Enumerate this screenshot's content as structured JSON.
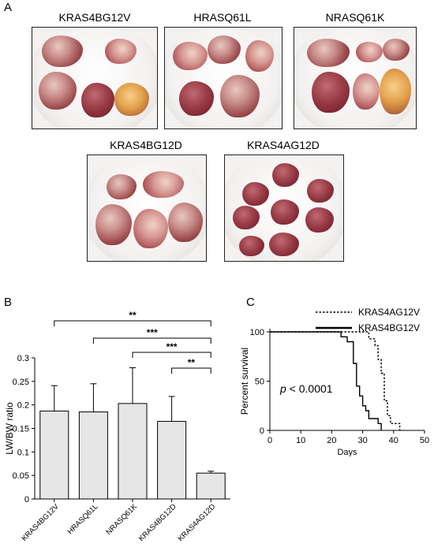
{
  "panel_a": {
    "letter": "A",
    "photos": [
      {
        "title": "KRAS4BG12V"
      },
      {
        "title": "HRASQ61L"
      },
      {
        "title": "NRASQ61K"
      },
      {
        "title": "KRAS4BG12D"
      },
      {
        "title": "KRAS4AG12D"
      }
    ]
  },
  "panel_b": {
    "letter": "B"
  },
  "panel_c": {
    "letter": "C"
  },
  "chart_data": [
    {
      "type": "bar",
      "categories": [
        "KRAS4BG12V",
        "HRASQ61L",
        "NRASQ61K",
        "KRAS4BG12D",
        "KRAS4AG12D"
      ],
      "values": [
        0.187,
        0.185,
        0.203,
        0.165,
        0.055
      ],
      "errors": [
        0.054,
        0.06,
        0.076,
        0.053,
        0.004
      ],
      "ylabel": "LW/BW ratio",
      "xlabel": "",
      "ylim": [
        0,
        0.3
      ],
      "yticks": [
        "0",
        "0.05",
        "0.1",
        "0.15",
        "0.2",
        "0.25",
        "0.3"
      ],
      "bar_color": "#e6e6e6",
      "significance": [
        {
          "from": "KRAS4BG12V",
          "to": "KRAS4AG12D",
          "label": "**"
        },
        {
          "from": "HRASQ61L",
          "to": "KRAS4AG12D",
          "label": "***"
        },
        {
          "from": "NRASQ61K",
          "to": "KRAS4AG12D",
          "label": "***"
        },
        {
          "from": "KRAS4BG12D",
          "to": "KRAS4AG12D",
          "label": "**"
        }
      ]
    },
    {
      "type": "line",
      "xlabel": "Days",
      "ylabel": "Percent survival",
      "xlim": [
        0,
        50
      ],
      "ylim": [
        0,
        100
      ],
      "xticks": [
        "0",
        "10",
        "20",
        "30",
        "40",
        "50"
      ],
      "yticks": [
        "0",
        "50",
        "100"
      ],
      "annotation_p": "p",
      "annotation_rest": " < 0.0001",
      "legend_position": "top-right",
      "series": [
        {
          "name": "KRAS4AG12V",
          "style": "dotted",
          "points": [
            [
              0,
              100
            ],
            [
              32,
              100
            ],
            [
              32,
              93
            ],
            [
              34,
              93
            ],
            [
              34,
              86
            ],
            [
              35,
              86
            ],
            [
              35,
              72
            ],
            [
              36,
              72
            ],
            [
              36,
              58
            ],
            [
              37,
              58
            ],
            [
              37,
              30
            ],
            [
              38,
              30
            ],
            [
              38,
              15
            ],
            [
              39,
              15
            ],
            [
              39,
              7
            ],
            [
              42,
              7
            ],
            [
              42,
              0
            ]
          ]
        },
        {
          "name": "KRAS4BG12V",
          "style": "solid",
          "points": [
            [
              0,
              100
            ],
            [
              23,
              100
            ],
            [
              23,
              95
            ],
            [
              25,
              95
            ],
            [
              25,
              90
            ],
            [
              27,
              90
            ],
            [
              27,
              68
            ],
            [
              28,
              68
            ],
            [
              28,
              45
            ],
            [
              29,
              45
            ],
            [
              29,
              35
            ],
            [
              30,
              35
            ],
            [
              30,
              25
            ],
            [
              31,
              25
            ],
            [
              31,
              20
            ],
            [
              32,
              20
            ],
            [
              32,
              12
            ],
            [
              35,
              12
            ],
            [
              35,
              7
            ],
            [
              36,
              7
            ],
            [
              36,
              0
            ]
          ]
        }
      ]
    }
  ]
}
